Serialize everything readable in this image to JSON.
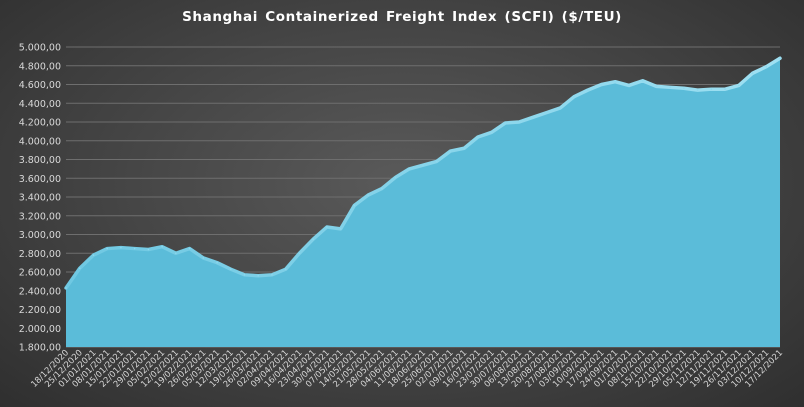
{
  "chart_data": {
    "type": "area",
    "title": "Shanghai Containerized Freight Index  (SCFI) ($/TEU)",
    "xlabel": "",
    "ylabel": "",
    "ylim": [
      1800,
      5000
    ],
    "y_ticks": [
      1800,
      2000,
      2200,
      2400,
      2600,
      2800,
      3000,
      3200,
      3400,
      3600,
      3800,
      4000,
      4200,
      4400,
      4600,
      4800,
      5000
    ],
    "y_tick_labels": [
      "1.800,00",
      "2.000,00",
      "2.200,00",
      "2.400,00",
      "2.600,00",
      "2.800,00",
      "3.000,00",
      "3.200,00",
      "3.400,00",
      "3.600,00",
      "3.800,00",
      "4.000,00",
      "4.200,00",
      "4.400,00",
      "4.600,00",
      "4.800,00",
      "5.000,00"
    ],
    "grid": true,
    "legend": "none",
    "categories": [
      "18/12/2020",
      "25/12/2020",
      "01/01/2021",
      "08/01/2021",
      "15/01/2021",
      "22/01/2021",
      "29/01/2021",
      "05/02/2021",
      "12/02/2021",
      "19/02/2021",
      "26/02/2021",
      "05/03/2021",
      "12/03/2021",
      "19/03/2021",
      "26/03/2021",
      "02/04/2021",
      "09/04/2021",
      "16/04/2021",
      "23/04/2021",
      "30/04/2021",
      "07/05/2021",
      "14/05/2021",
      "21/05/2021",
      "28/05/2021",
      "04/06/2021",
      "11/06/2021",
      "18/06/2021",
      "25/06/2021",
      "02/07/2021",
      "09/07/2021",
      "16/07/2021",
      "23/07/2021",
      "30/07/2021",
      "06/08/2021",
      "13/08/2021",
      "20/08/2021",
      "27/08/2021",
      "03/09/2021",
      "10/09/2021",
      "17/09/2021",
      "24/09/2021",
      "01/10/2021",
      "08/10/2021",
      "15/10/2021",
      "22/10/2021",
      "29/10/2021",
      "05/11/2021",
      "12/11/2021",
      "19/11/2021",
      "26/11/2021",
      "03/12/2021",
      "10/12/2021",
      "17/12/2021"
    ],
    "series": [
      {
        "name": "",
        "values": [
          2430,
          2640,
          2780,
          2850,
          2860,
          2850,
          2840,
          2870,
          2800,
          2850,
          2750,
          2700,
          2630,
          2570,
          2560,
          2570,
          2630,
          2800,
          2950,
          3080,
          3060,
          3310,
          3420,
          3490,
          3610,
          3700,
          3740,
          3780,
          3890,
          3920,
          4040,
          4090,
          4190,
          4200,
          4250,
          4300,
          4350,
          4470,
          4540,
          4600,
          4630,
          4590,
          4640,
          4580,
          4570,
          4560,
          4540,
          4550,
          4550,
          4590,
          4720,
          4790,
          4880
        ],
        "color": "#5bbcd9"
      }
    ],
    "colors": {
      "area_fill": "#5bbcd9",
      "area_edge": "#8ed8ee",
      "grid": "#6e6e6e",
      "text": "#d9d9d9",
      "title": "#ffffff"
    }
  }
}
